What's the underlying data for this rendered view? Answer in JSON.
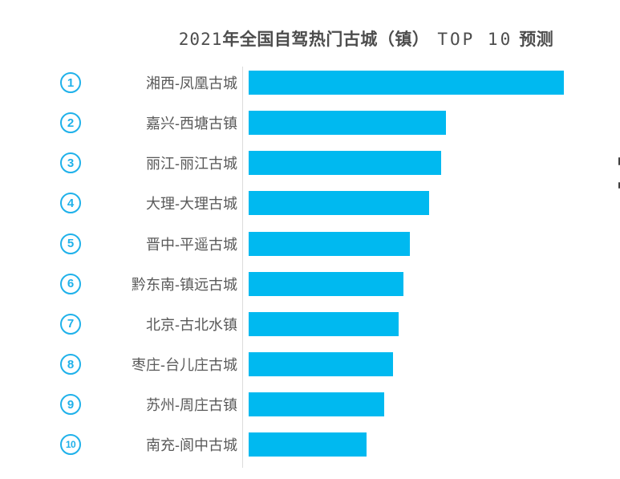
{
  "title": {
    "year": "2021",
    "main": "年全国自驾热门古城（镇）",
    "top": "TOP 10",
    "suffix": "预测",
    "full": "2021年全国自驾热门古城（镇）TOP 10 预测"
  },
  "chart_data": {
    "type": "bar",
    "orientation": "horizontal",
    "title": "2021年全国自驾热门古城（镇）TOP 10 预测",
    "ranks": [
      "1",
      "2",
      "3",
      "4",
      "5",
      "6",
      "7",
      "8",
      "9",
      "10"
    ],
    "categories": [
      "湘西-凤凰古城",
      "嘉兴-西塘古镇",
      "丽江-丽江古城",
      "大理-大理古城",
      "晋中-平遥古城",
      "黔东南-镇远古城",
      "北京-古北水镇",
      "枣庄-台儿庄古城",
      "苏州-周庄古镇",
      "南充-阆中古城"
    ],
    "values": [
      100,
      62.6,
      61.1,
      57.3,
      51.1,
      49.1,
      47.6,
      45.8,
      43.0,
      37.4
    ],
    "value_note": "relative popularity index estimated from bar lengths, max bar = 100",
    "xlim": [
      0,
      100
    ],
    "grid": false,
    "legend": false,
    "value_labels_shown": false,
    "bar_color": "#00b9f0",
    "rank_circle_color": "#1fb1ea",
    "axis_line_color": "#dcdcdc",
    "title_color": "#4d4d4d",
    "label_color": "#595959"
  }
}
